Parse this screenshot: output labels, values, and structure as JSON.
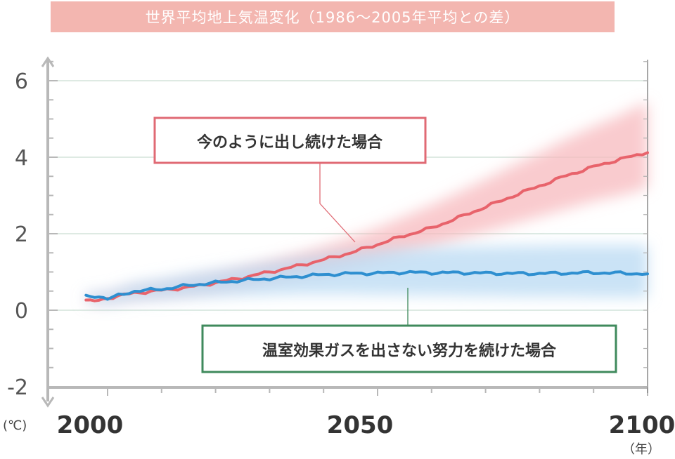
{
  "chart_data": {
    "type": "line",
    "title": "世界平均地上気温変化（1986〜2005年平均との差）",
    "ylabel_unit": "(℃)",
    "xlabel_unit": "（年）",
    "ylim": [
      -2,
      6.5
    ],
    "xlim": [
      1995,
      2100
    ],
    "y_ticks": [
      6,
      4,
      2,
      0,
      -2
    ],
    "x_ticks": [
      2000,
      2050,
      2100
    ],
    "grid": true,
    "series": [
      {
        "name": "今のように出し続けた場合",
        "color": "#e8636b",
        "band_color": "#f7b9bd",
        "x": [
          1996,
          2000,
          2005,
          2010,
          2015,
          2020,
          2025,
          2030,
          2035,
          2040,
          2045,
          2050,
          2055,
          2060,
          2065,
          2070,
          2075,
          2080,
          2085,
          2090,
          2095,
          2100
        ],
        "y": [
          0.25,
          0.32,
          0.45,
          0.52,
          0.6,
          0.72,
          0.85,
          1.0,
          1.15,
          1.32,
          1.5,
          1.72,
          1.95,
          2.15,
          2.42,
          2.7,
          2.98,
          3.25,
          3.52,
          3.75,
          3.95,
          4.12
        ],
        "band_low": [
          0.2,
          0.25,
          0.34,
          0.4,
          0.46,
          0.55,
          0.65,
          0.77,
          0.88,
          1.0,
          1.15,
          1.3,
          1.48,
          1.65,
          1.85,
          2.05,
          2.25,
          2.45,
          2.65,
          2.85,
          3.0,
          3.2
        ],
        "band_high": [
          0.32,
          0.4,
          0.56,
          0.66,
          0.78,
          0.92,
          1.08,
          1.26,
          1.45,
          1.66,
          1.9,
          2.15,
          2.45,
          2.75,
          3.08,
          3.42,
          3.78,
          4.12,
          4.48,
          4.8,
          5.1,
          5.45
        ]
      },
      {
        "name": "温室効果ガスを出さない努力を続けた場合",
        "color": "#2e8fd0",
        "band_color": "#b8d9f3",
        "x": [
          1996,
          2000,
          2005,
          2010,
          2015,
          2020,
          2025,
          2030,
          2035,
          2040,
          2045,
          2050,
          2055,
          2060,
          2065,
          2070,
          2075,
          2080,
          2085,
          2090,
          2095,
          2100
        ],
        "y": [
          0.35,
          0.3,
          0.5,
          0.55,
          0.65,
          0.72,
          0.78,
          0.83,
          0.88,
          0.93,
          0.96,
          0.97,
          0.99,
          0.98,
          0.98,
          0.97,
          0.96,
          0.96,
          0.97,
          0.98,
          0.97,
          0.95
        ],
        "band_low": [
          0.22,
          0.15,
          0.25,
          0.28,
          0.32,
          0.35,
          0.38,
          0.4,
          0.42,
          0.42,
          0.42,
          0.41,
          0.4,
          0.39,
          0.38,
          0.37,
          0.36,
          0.35,
          0.35,
          0.34,
          0.34,
          0.33
        ],
        "band_high": [
          0.45,
          0.48,
          0.72,
          0.82,
          0.95,
          1.05,
          1.15,
          1.25,
          1.35,
          1.45,
          1.52,
          1.58,
          1.62,
          1.64,
          1.66,
          1.67,
          1.68,
          1.69,
          1.7,
          1.7,
          1.7,
          1.7
        ]
      }
    ],
    "annotations": [
      {
        "text": "今のように出し続けた場合",
        "border_color": "#e06a74"
      },
      {
        "text": "温室効果ガスを出さない努力を続けた場合",
        "border_color": "#3f8a5c"
      }
    ]
  }
}
